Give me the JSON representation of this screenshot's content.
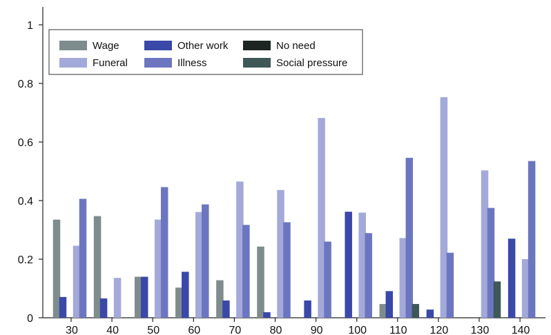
{
  "chart_data": {
    "type": "bar",
    "title": "",
    "xlabel": "",
    "ylabel": "",
    "ylim": [
      0,
      1
    ],
    "y_ticks": [
      "0",
      "0.2",
      "0.4",
      "0.6",
      "0.8",
      "1"
    ],
    "categories": [
      "30",
      "40",
      "50",
      "60",
      "70",
      "80",
      "90",
      "100",
      "110",
      "120",
      "130",
      "140"
    ],
    "grid": false,
    "legend_position": "top-left",
    "series": [
      {
        "name": "Wage",
        "color": "#7f8c8d",
        "values": [
          0.335,
          0.347,
          0.14,
          0.103,
          0.128,
          0.243,
          0,
          0,
          0.047,
          0,
          0,
          0
        ]
      },
      {
        "name": "Other work",
        "color": "#3a48a8",
        "values": [
          0.071,
          0.066,
          0.14,
          0.157,
          0.059,
          0.019,
          0.059,
          0.362,
          0.091,
          0.028,
          0,
          0.27
        ]
      },
      {
        "name": "Funeral",
        "color": "#a3a9d8",
        "values": [
          0.246,
          0.136,
          0.335,
          0.361,
          0.465,
          0.436,
          0.682,
          0.359,
          0.272,
          0.753,
          0.503,
          0.2
        ]
      },
      {
        "name": "Illness",
        "color": "#6c76c0",
        "values": [
          0.406,
          0,
          0.446,
          0.387,
          0.317,
          0.326,
          0.26,
          0.289,
          0.546,
          0.222,
          0.375,
          0.535
        ]
      },
      {
        "name": "No need",
        "color": "#1c2521",
        "values": [
          0,
          0,
          0,
          0,
          0,
          0,
          0,
          0,
          0,
          0,
          0,
          0
        ]
      },
      {
        "name": "Social pressure",
        "color": "#3f5757",
        "values": [
          0,
          0,
          0,
          0,
          0,
          0,
          0,
          0,
          0.047,
          0,
          0.124,
          0
        ]
      }
    ],
    "legend_rows": [
      [
        "Wage",
        "Other work",
        "No need"
      ],
      [
        "Funeral",
        "Illness",
        "Social pressure"
      ]
    ]
  }
}
